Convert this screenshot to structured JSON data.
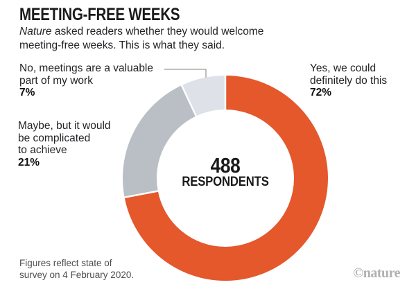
{
  "header": {
    "title": "MEETING-FREE WEEKS",
    "subtitle": {
      "line1_italic": "Nature",
      "line1_rest": " asked readers whether they would welcome",
      "line2": "meeting-free weeks. This is what they said."
    }
  },
  "chart_data": {
    "type": "pie",
    "donut": true,
    "title": "MEETING-FREE WEEKS",
    "total_respondents": 488,
    "center_value": "488",
    "center_label": "RESPONDENTS",
    "start_angle_deg": 0,
    "direction": "clockwise",
    "slices": [
      {
        "key": "yes",
        "label": "Yes, we could definitely do this",
        "pct": 72,
        "color": "#E4582C"
      },
      {
        "key": "maybe",
        "label": "Maybe, but it would be complicated to achieve",
        "pct": 21,
        "color": "#B9BFC5"
      },
      {
        "key": "no",
        "label": "No, meetings are a valuable part of my work",
        "pct": 7,
        "color": "#DEE1E7"
      }
    ]
  },
  "callouts": {
    "no": {
      "lines": [
        "No, meetings are a valuable",
        "part of my work"
      ],
      "pct": "7%"
    },
    "maybe": {
      "lines": [
        "Maybe, but it would",
        "be complicated",
        "to achieve"
      ],
      "pct": "21%"
    },
    "yes": {
      "lines": [
        "Yes, we could",
        "definitely do this"
      ],
      "pct": "72%"
    }
  },
  "footer": {
    "note_lines": [
      "Figures reflect state of",
      "survey on 4 February 2020."
    ],
    "credit": "©nature"
  },
  "colors": {
    "accent_orange": "#E4582C",
    "gray_slice": "#B9BFC5",
    "light_gray_slice": "#DEE1E7",
    "leader_line": "#9C9C9C"
  }
}
